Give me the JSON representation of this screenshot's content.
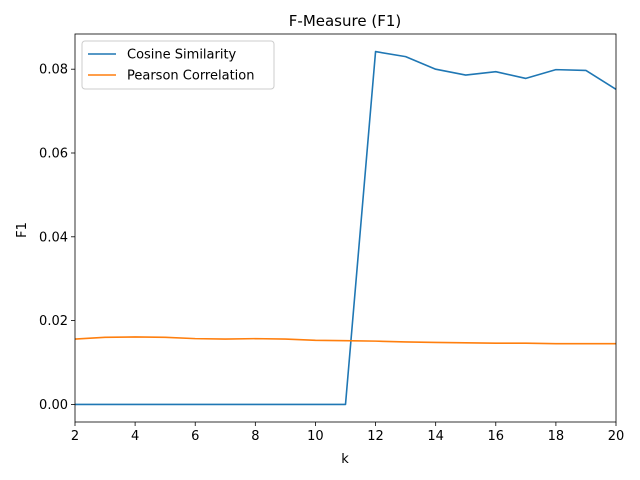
{
  "chart_data": {
    "type": "line",
    "title": "F-Measure (F1)",
    "xlabel": "k",
    "ylabel": "F1",
    "xlim": [
      2,
      20
    ],
    "ylim": [
      -0.0042,
      0.0884
    ],
    "xticks": [
      2,
      4,
      6,
      8,
      10,
      12,
      14,
      16,
      18,
      20
    ],
    "yticks": [
      0.0,
      0.02,
      0.04,
      0.06,
      0.08
    ],
    "ytick_labels": [
      "0.00",
      "0.02",
      "0.04",
      "0.06",
      "0.08"
    ],
    "grid": false,
    "legend_position": "upper-left",
    "x": [
      2,
      3,
      4,
      5,
      6,
      7,
      8,
      9,
      10,
      11,
      12,
      13,
      14,
      15,
      16,
      17,
      18,
      19,
      20
    ],
    "series": [
      {
        "name": "Cosine Similarity",
        "color": "#1f77b4",
        "values": [
          0.0,
          0.0,
          0.0,
          0.0,
          0.0,
          0.0,
          0.0,
          0.0,
          0.0,
          0.0,
          0.0842,
          0.083,
          0.08,
          0.0786,
          0.0794,
          0.0778,
          0.0799,
          0.0797,
          0.0752
        ]
      },
      {
        "name": "Pearson Correlation",
        "color": "#ff7f0e",
        "values": [
          0.0156,
          0.016,
          0.0161,
          0.016,
          0.0157,
          0.0156,
          0.0157,
          0.0156,
          0.0153,
          0.0152,
          0.0151,
          0.0149,
          0.0148,
          0.0147,
          0.0146,
          0.0146,
          0.0145,
          0.0145,
          0.0145
        ]
      }
    ]
  }
}
